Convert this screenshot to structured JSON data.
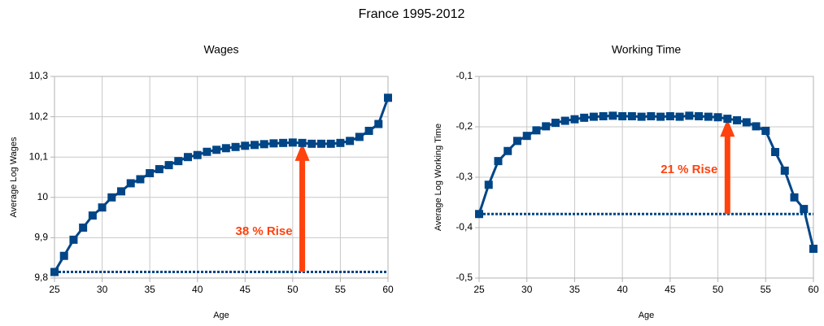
{
  "title": "France 1995-2012",
  "chart_data": [
    {
      "type": "line",
      "title": "Wages",
      "x_label": "Age",
      "y_label": "Average Log Wages",
      "x": [
        25,
        26,
        27,
        28,
        29,
        30,
        31,
        32,
        33,
        34,
        35,
        36,
        37,
        38,
        39,
        40,
        41,
        42,
        43,
        44,
        45,
        46,
        47,
        48,
        49,
        50,
        51,
        52,
        53,
        54,
        55,
        56,
        57,
        58,
        59,
        60
      ],
      "series": [
        {
          "name": "Average Log Wages",
          "color": "#004586",
          "values": [
            9.815,
            9.855,
            9.895,
            9.925,
            9.955,
            9.975,
            10.0,
            10.015,
            10.035,
            10.045,
            10.06,
            10.07,
            10.08,
            10.09,
            10.1,
            10.105,
            10.113,
            10.118,
            10.122,
            10.125,
            10.128,
            10.13,
            10.132,
            10.134,
            10.135,
            10.136,
            10.135,
            10.133,
            10.133,
            10.133,
            10.135,
            10.14,
            10.15,
            10.165,
            10.182,
            10.247
          ]
        }
      ],
      "xlim": [
        25,
        60
      ],
      "xticks": [
        25,
        30,
        35,
        40,
        45,
        50,
        55,
        60
      ],
      "ylim": [
        9.8,
        10.3
      ],
      "yticks": [
        {
          "value": 9.8,
          "label": "9,8"
        },
        {
          "value": 9.9,
          "label": "9,9"
        },
        10,
        {
          "value": 10.1,
          "label": "10,1"
        },
        {
          "value": 10.2,
          "label": "10,2"
        },
        {
          "value": 10.3,
          "label": "10,3"
        }
      ],
      "grid": true,
      "baseline": 9.815,
      "arrow": {
        "x": 51,
        "from": 9.815,
        "to": 10.135,
        "color": "#ff420e",
        "label": "38 % Rise"
      }
    },
    {
      "type": "line",
      "title": "Working Time",
      "x_label": "Age",
      "y_label": "Average Log Working Time",
      "x": [
        25,
        26,
        27,
        28,
        29,
        30,
        31,
        32,
        33,
        34,
        35,
        36,
        37,
        38,
        39,
        40,
        41,
        42,
        43,
        44,
        45,
        46,
        47,
        48,
        49,
        50,
        51,
        52,
        53,
        54,
        55,
        56,
        57,
        58,
        59,
        60
      ],
      "series": [
        {
          "name": "Average Log Working Time",
          "color": "#004586",
          "values": [
            -0.373,
            -0.315,
            -0.268,
            -0.248,
            -0.228,
            -0.218,
            -0.207,
            -0.199,
            -0.192,
            -0.188,
            -0.185,
            -0.182,
            -0.18,
            -0.179,
            -0.178,
            -0.179,
            -0.179,
            -0.18,
            -0.179,
            -0.18,
            -0.179,
            -0.18,
            -0.178,
            -0.179,
            -0.18,
            -0.181,
            -0.184,
            -0.187,
            -0.191,
            -0.199,
            -0.208,
            -0.25,
            -0.287,
            -0.34,
            -0.363,
            -0.442
          ]
        }
      ],
      "xlim": [
        25,
        60
      ],
      "xticks": [
        25,
        30,
        35,
        40,
        45,
        50,
        55,
        60
      ],
      "ylim": [
        -0.5,
        -0.1
      ],
      "yticks": [
        {
          "value": -0.5,
          "label": "-0,5"
        },
        {
          "value": -0.4,
          "label": "-0,4"
        },
        {
          "value": -0.3,
          "label": "-0,3"
        },
        {
          "value": -0.2,
          "label": "-0,2"
        },
        {
          "value": -0.1,
          "label": "-0,1"
        }
      ],
      "grid": true,
      "baseline": -0.373,
      "arrow": {
        "x": 51,
        "from": -0.373,
        "to": -0.184,
        "color": "#ff420e",
        "label": "21 % Rise"
      }
    }
  ]
}
